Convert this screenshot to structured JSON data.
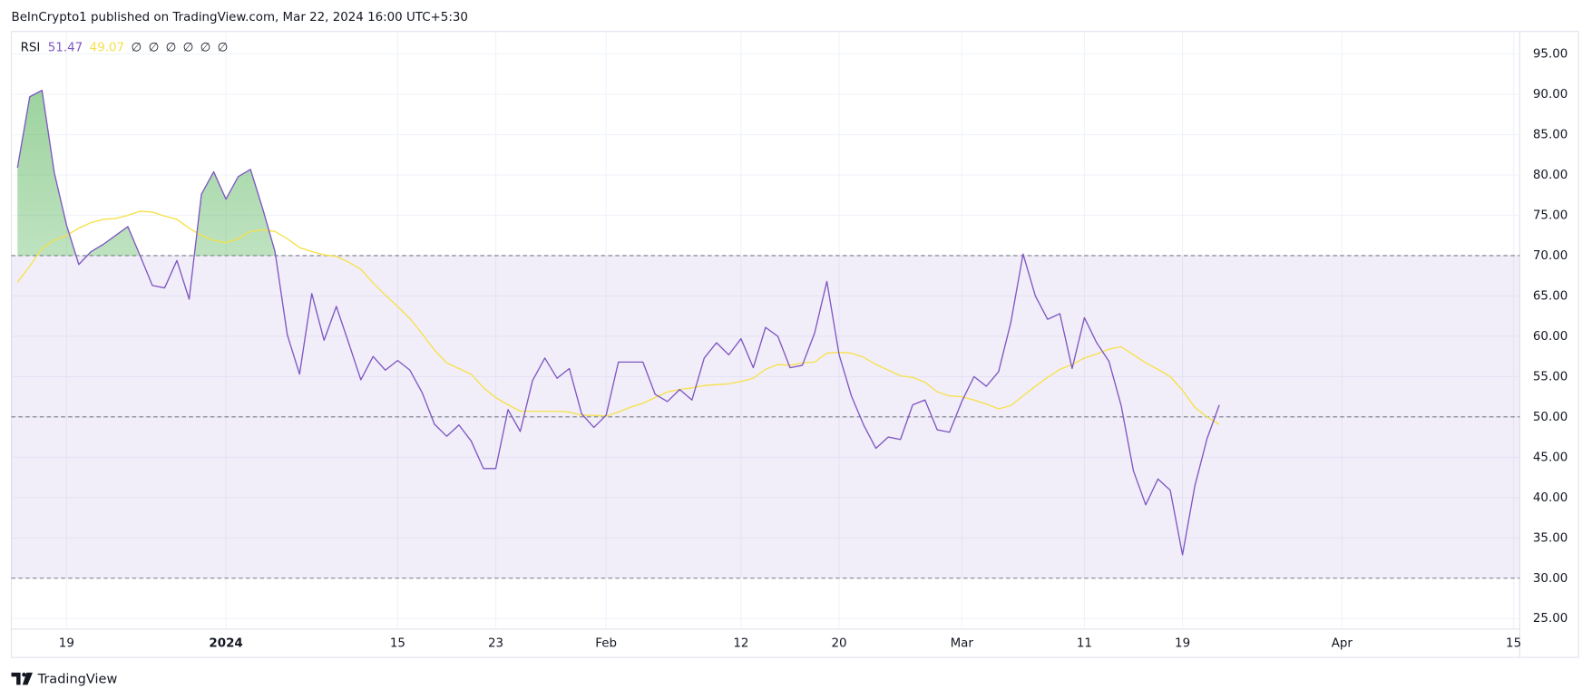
{
  "header": {
    "text": "BeInCrypto1 published on TradingView.com, Mar 22, 2024 16:00 UTC+5:30"
  },
  "footer": {
    "brand": "TradingView"
  },
  "chart_data": {
    "type": "line",
    "legend": {
      "title": "RSI",
      "readouts": [
        "51.47",
        "49.07"
      ],
      "placeholders": [
        "∅",
        "∅",
        "∅",
        "∅",
        "∅",
        "∅"
      ]
    },
    "x": [
      "2023-12-15",
      "2023-12-16",
      "2023-12-17",
      "2023-12-18",
      "2023-12-19",
      "2023-12-20",
      "2023-12-21",
      "2023-12-22",
      "2023-12-23",
      "2023-12-24",
      "2023-12-25",
      "2023-12-26",
      "2023-12-27",
      "2023-12-28",
      "2023-12-29",
      "2023-12-30",
      "2023-12-31",
      "2024-01-01",
      "2024-01-02",
      "2024-01-03",
      "2024-01-04",
      "2024-01-05",
      "2024-01-06",
      "2024-01-07",
      "2024-01-08",
      "2024-01-09",
      "2024-01-10",
      "2024-01-11",
      "2024-01-12",
      "2024-01-13",
      "2024-01-14",
      "2024-01-15",
      "2024-01-16",
      "2024-01-17",
      "2024-01-18",
      "2024-01-19",
      "2024-01-20",
      "2024-01-21",
      "2024-01-22",
      "2024-01-23",
      "2024-01-24",
      "2024-01-25",
      "2024-01-26",
      "2024-01-27",
      "2024-01-28",
      "2024-01-29",
      "2024-01-30",
      "2024-01-31",
      "2024-02-01",
      "2024-02-02",
      "2024-02-03",
      "2024-02-04",
      "2024-02-05",
      "2024-02-06",
      "2024-02-07",
      "2024-02-08",
      "2024-02-09",
      "2024-02-10",
      "2024-02-11",
      "2024-02-12",
      "2024-02-13",
      "2024-02-14",
      "2024-02-15",
      "2024-02-16",
      "2024-02-17",
      "2024-02-18",
      "2024-02-19",
      "2024-02-20",
      "2024-02-21",
      "2024-02-22",
      "2024-02-23",
      "2024-02-24",
      "2024-02-25",
      "2024-02-26",
      "2024-02-27",
      "2024-02-28",
      "2024-02-29",
      "2024-03-01",
      "2024-03-02",
      "2024-03-03",
      "2024-03-04",
      "2024-03-05",
      "2024-03-06",
      "2024-03-07",
      "2024-03-08",
      "2024-03-09",
      "2024-03-10",
      "2024-03-11",
      "2024-03-12",
      "2024-03-13",
      "2024-03-14",
      "2024-03-15",
      "2024-03-16",
      "2024-03-17",
      "2024-03-18",
      "2024-03-19",
      "2024-03-20",
      "2024-03-21",
      "2024-03-22"
    ],
    "series": [
      {
        "color": "#7e57c2",
        "values": [
          80.9,
          89.7,
          90.5,
          80.3,
          73.8,
          68.9,
          70.5,
          71.4,
          72.5,
          73.6,
          70.0,
          66.3,
          66.0,
          69.4,
          64.6,
          77.6,
          80.4,
          77.0,
          79.8,
          80.7,
          75.8,
          70.5,
          60.2,
          55.3,
          65.3,
          59.5,
          63.7,
          59.2,
          54.6,
          57.5,
          55.8,
          57.0,
          55.8,
          53.0,
          49.1,
          47.6,
          49.0,
          47.0,
          43.6,
          43.6,
          50.9,
          48.2,
          54.5,
          57.3,
          54.8,
          56.0,
          50.4,
          48.7,
          50.2,
          56.8,
          56.8,
          56.8,
          52.8,
          51.9,
          53.4,
          52.1,
          57.3,
          59.2,
          57.7,
          59.7,
          56.1,
          61.1,
          60.0,
          56.1,
          56.4,
          60.4,
          66.8,
          57.7,
          52.6,
          49.0,
          46.1,
          47.5,
          47.2,
          51.5,
          52.1,
          48.4,
          48.1,
          51.9,
          55.0,
          53.8,
          55.6,
          61.7,
          70.2,
          65.0,
          62.1,
          62.8,
          56.0,
          62.3,
          59.2,
          56.9,
          51.4,
          43.3,
          39.1,
          42.3,
          40.9,
          32.9,
          41.4,
          47.3,
          51.47
        ]
      },
      {
        "color": "#f5e14a",
        "values": [
          66.7,
          68.7,
          70.9,
          71.9,
          72.5,
          73.4,
          74.1,
          74.5,
          74.6,
          75.0,
          75.5,
          75.4,
          74.9,
          74.5,
          73.4,
          72.5,
          71.9,
          71.6,
          72.1,
          73.0,
          73.2,
          73.0,
          72.1,
          71.0,
          70.5,
          70.1,
          69.9,
          69.2,
          68.3,
          66.6,
          65.1,
          63.7,
          62.2,
          60.3,
          58.3,
          56.7,
          56.0,
          55.3,
          53.6,
          52.4,
          51.5,
          50.7,
          50.7,
          50.7,
          50.7,
          50.6,
          50.2,
          50.2,
          50.1,
          50.6,
          51.2,
          51.7,
          52.4,
          53.1,
          53.4,
          53.6,
          53.9,
          54.0,
          54.1,
          54.4,
          54.8,
          55.9,
          56.5,
          56.4,
          56.7,
          56.8,
          57.9,
          58.0,
          57.9,
          57.4,
          56.5,
          55.8,
          55.1,
          54.9,
          54.3,
          53.1,
          52.6,
          52.5,
          52.1,
          51.6,
          51.0,
          51.4,
          52.6,
          53.8,
          54.9,
          55.9,
          56.5,
          57.3,
          57.8,
          58.4,
          58.7,
          57.7,
          56.7,
          55.9,
          55.0,
          53.3,
          51.2,
          50.0,
          49.07
        ]
      }
    ],
    "upper_band": 70,
    "middle_band": 50,
    "lower_band": 30,
    "band_color": "#7e57c2",
    "overbought_color": "#4caf50",
    "xlim": [
      "2023-12-14T12:00:00Z",
      "2024-04-15T12:00:00Z"
    ],
    "xticks": [
      {
        "value": "2023-12-19",
        "label": "19"
      },
      {
        "value": "2024-01-01",
        "label": "2024"
      },
      {
        "value": "2024-01-15",
        "label": "15"
      },
      {
        "value": "2024-01-23",
        "label": "23"
      },
      {
        "value": "2024-02-01",
        "label": "Feb"
      },
      {
        "value": "2024-02-12",
        "label": "12"
      },
      {
        "value": "2024-02-20",
        "label": "20"
      },
      {
        "value": "2024-03-01",
        "label": "Mar"
      },
      {
        "value": "2024-03-11",
        "label": "11"
      },
      {
        "value": "2024-03-19",
        "label": "19"
      },
      {
        "value": "2024-04-01",
        "label": "Apr"
      },
      {
        "value": "2024-04-15",
        "label": "15"
      }
    ],
    "ylim": [
      23.7,
      97.8
    ],
    "yticks": [
      {
        "value": 25,
        "label": "25.00"
      },
      {
        "value": 30,
        "label": "30.00"
      },
      {
        "value": 35,
        "label": "35.00"
      },
      {
        "value": 40,
        "label": "40.00"
      },
      {
        "value": 45,
        "label": "45.00"
      },
      {
        "value": 50,
        "label": "50.00"
      },
      {
        "value": 55,
        "label": "55.00"
      },
      {
        "value": 60,
        "label": "60.00"
      },
      {
        "value": 65,
        "label": "65.00"
      },
      {
        "value": 70,
        "label": "70.00"
      },
      {
        "value": 75,
        "label": "75.00"
      },
      {
        "value": 80,
        "label": "80.00"
      },
      {
        "value": 85,
        "label": "85.00"
      },
      {
        "value": 90,
        "label": "90.00"
      },
      {
        "value": 95,
        "label": "95.00"
      }
    ],
    "grid": true
  }
}
